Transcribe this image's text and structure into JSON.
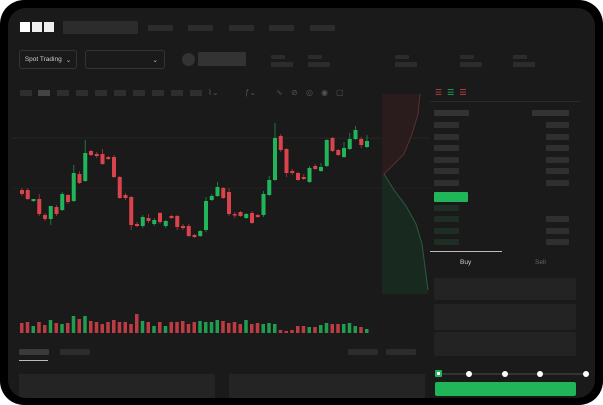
{
  "brand": {
    "logo": "OKX"
  },
  "toolbar": {
    "mode_dropdown": "Spot Trading",
    "chevron": "⌄"
  },
  "trade": {
    "tabs": [
      {
        "label": "Buy",
        "active": true
      },
      {
        "label": "Sell",
        "active": false
      }
    ],
    "slider_percent": 0
  },
  "colors": {
    "up": "#21b55a",
    "down": "#d9434b",
    "bg": "#1a1a1a"
  },
  "icons": [
    "chart-type-icon",
    "indicator-icon",
    "line-tool-icon",
    "ruler-icon",
    "camera-icon",
    "settings-icon",
    "fullscreen-icon",
    "orderbook-both-icon",
    "orderbook-bids-icon",
    "orderbook-asks-icon"
  ],
  "chart_data": {
    "type": "candlestick",
    "candles_ohlc": [
      [
        118,
        120,
        112,
        114
      ],
      [
        118,
        120,
        108,
        109
      ],
      [
        107,
        108,
        106,
        109
      ],
      [
        109,
        114,
        92,
        94
      ],
      [
        93,
        95,
        87,
        89
      ],
      [
        89,
        102,
        83,
        102
      ],
      [
        101,
        103,
        92,
        94
      ],
      [
        98,
        116,
        97,
        114
      ],
      [
        113,
        114,
        104,
        106
      ],
      [
        107,
        143,
        106,
        135
      ],
      [
        134,
        137,
        124,
        125
      ],
      [
        127,
        168,
        126,
        155
      ],
      [
        157,
        158,
        152,
        153
      ],
      [
        154,
        156,
        150,
        152
      ],
      [
        154,
        159,
        143,
        144
      ],
      [
        151,
        152,
        148,
        149
      ],
      [
        151,
        153,
        130,
        131
      ],
      [
        131,
        132,
        109,
        110
      ],
      [
        113,
        115,
        108,
        110
      ],
      [
        111,
        112,
        78,
        83
      ],
      [
        84,
        86,
        81,
        82
      ],
      [
        82,
        93,
        80,
        91
      ],
      [
        90,
        94,
        85,
        87
      ],
      [
        84,
        90,
        82,
        88
      ],
      [
        95,
        96,
        84,
        86
      ],
      [
        82,
        88,
        80,
        87
      ],
      [
        92,
        93,
        89,
        90
      ],
      [
        92,
        93,
        78,
        81
      ],
      [
        82,
        84,
        78,
        80
      ],
      [
        82,
        84,
        71,
        72
      ],
      [
        73,
        74,
        70,
        71
      ],
      [
        72,
        78,
        71,
        77
      ],
      [
        78,
        111,
        76,
        107
      ],
      [
        108,
        114,
        107,
        112
      ],
      [
        112,
        126,
        111,
        121
      ],
      [
        120,
        121,
        109,
        110
      ],
      [
        116,
        120,
        92,
        94
      ],
      [
        94,
        96,
        90,
        93
      ],
      [
        96,
        97,
        91,
        92
      ],
      [
        90,
        95,
        89,
        94
      ],
      [
        95,
        97,
        84,
        85
      ],
      [
        93,
        94,
        90,
        91
      ],
      [
        93,
        117,
        91,
        114
      ],
      [
        113,
        132,
        112,
        128
      ],
      [
        128,
        185,
        127,
        170
      ],
      [
        172,
        174,
        156,
        158
      ],
      [
        159,
        160,
        131,
        135
      ],
      [
        137,
        139,
        133,
        135
      ],
      [
        135,
        136,
        127,
        128
      ],
      [
        131,
        134,
        128,
        129
      ],
      [
        126,
        142,
        125,
        140
      ],
      [
        142,
        144,
        138,
        139
      ],
      [
        137,
        145,
        136,
        141
      ],
      [
        142,
        169,
        141,
        168
      ],
      [
        170,
        171,
        156,
        157
      ],
      [
        158,
        159,
        152,
        153
      ],
      [
        151,
        166,
        150,
        160
      ],
      [
        159,
        175,
        158,
        169
      ],
      [
        169,
        182,
        168,
        178
      ],
      [
        169,
        171,
        160,
        163
      ],
      [
        161,
        173,
        160,
        167
      ]
    ],
    "volumes": [
      10,
      11,
      7,
      11,
      8,
      13,
      10,
      9,
      10,
      17,
      14,
      17,
      12,
      11,
      9,
      11,
      13,
      11,
      11,
      9,
      19,
      12,
      11,
      7,
      11,
      7,
      11,
      11,
      12,
      9,
      11,
      12,
      11,
      11,
      13,
      12,
      10,
      11,
      9,
      13,
      9,
      10,
      9,
      10,
      9,
      3,
      2,
      3,
      7,
      7,
      6,
      6,
      8,
      10,
      9,
      9,
      9,
      10,
      7,
      6,
      4
    ]
  }
}
